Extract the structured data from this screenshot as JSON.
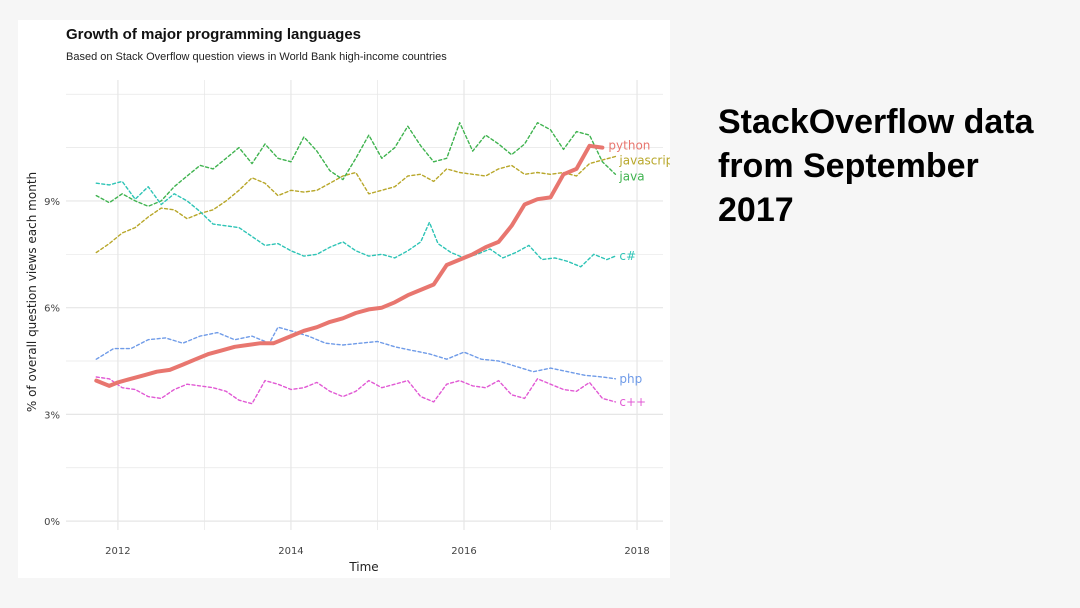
{
  "side_caption": "StackOverflow data from September 2017",
  "colors": {
    "python": "#e8766f",
    "javascript": "#b8a72a",
    "java": "#3fb34f",
    "csharp": "#2ec4b6",
    "php": "#6f9be8",
    "cpp": "#e159d4",
    "grid": "#e6e6e6"
  },
  "chart_data": {
    "type": "line",
    "title": "Growth of major programming languages",
    "subtitle": "Based on Stack Overflow question views in World Bank high-income countries",
    "xlabel": "Time",
    "ylabel": "% of overall question views each month",
    "xlim": [
      2011.4,
      2018.3
    ],
    "ylim": [
      -0.25,
      12.4
    ],
    "x_ticks": [
      2012,
      2014,
      2016,
      2018
    ],
    "x_tick_labels": [
      "2012",
      "2014",
      "2016",
      "2018"
    ],
    "y_ticks": [
      0,
      3,
      6,
      9
    ],
    "y_tick_labels": [
      "0%",
      "3%",
      "6%",
      "9%"
    ],
    "grid": true,
    "series": [
      {
        "name": "python",
        "label": "python",
        "color": "#e8766f",
        "style": "solid",
        "x": [
          2011.75,
          2011.9,
          2012.0,
          2012.15,
          2012.3,
          2012.45,
          2012.6,
          2012.75,
          2012.9,
          2013.05,
          2013.2,
          2013.35,
          2013.5,
          2013.65,
          2013.8,
          2014.0,
          2014.15,
          2014.3,
          2014.45,
          2014.6,
          2014.75,
          2014.9,
          2015.05,
          2015.2,
          2015.35,
          2015.5,
          2015.65,
          2015.8,
          2015.95,
          2016.1,
          2016.25,
          2016.4,
          2016.55,
          2016.7,
          2016.85,
          2017.0,
          2017.15,
          2017.3,
          2017.45,
          2017.6
        ],
        "values": [
          3.95,
          3.8,
          3.9,
          4.0,
          4.1,
          4.2,
          4.25,
          4.4,
          4.55,
          4.7,
          4.8,
          4.9,
          4.95,
          5.0,
          5.0,
          5.2,
          5.35,
          5.45,
          5.6,
          5.7,
          5.85,
          5.95,
          6.0,
          6.15,
          6.35,
          6.5,
          6.65,
          7.2,
          7.35,
          7.5,
          7.7,
          7.85,
          8.3,
          8.9,
          9.05,
          9.1,
          9.75,
          9.9,
          10.55,
          10.5
        ]
      },
      {
        "name": "javascript",
        "label": "javascript",
        "color": "#b8a72a",
        "style": "dashed",
        "x": [
          2011.75,
          2011.9,
          2012.05,
          2012.2,
          2012.35,
          2012.5,
          2012.65,
          2012.8,
          2012.95,
          2013.1,
          2013.25,
          2013.4,
          2013.55,
          2013.7,
          2013.85,
          2014.0,
          2014.15,
          2014.3,
          2014.45,
          2014.6,
          2014.75,
          2014.9,
          2015.05,
          2015.2,
          2015.35,
          2015.5,
          2015.65,
          2015.8,
          2015.95,
          2016.1,
          2016.25,
          2016.4,
          2016.55,
          2016.7,
          2016.85,
          2017.0,
          2017.15,
          2017.3,
          2017.45,
          2017.6,
          2017.75
        ],
        "values": [
          7.55,
          7.8,
          8.1,
          8.25,
          8.55,
          8.8,
          8.75,
          8.5,
          8.65,
          8.75,
          9.0,
          9.3,
          9.65,
          9.5,
          9.15,
          9.3,
          9.25,
          9.3,
          9.5,
          9.7,
          9.8,
          9.2,
          9.3,
          9.4,
          9.7,
          9.75,
          9.55,
          9.9,
          9.8,
          9.75,
          9.7,
          9.9,
          10.0,
          9.75,
          9.8,
          9.75,
          9.8,
          9.7,
          10.05,
          10.15,
          10.25
        ]
      },
      {
        "name": "java",
        "label": "java",
        "color": "#3fb34f",
        "style": "dashed",
        "x": [
          2011.75,
          2011.9,
          2012.05,
          2012.2,
          2012.35,
          2012.5,
          2012.65,
          2012.8,
          2012.95,
          2013.1,
          2013.25,
          2013.4,
          2013.55,
          2013.7,
          2013.85,
          2014.0,
          2014.15,
          2014.3,
          2014.45,
          2014.6,
          2014.75,
          2014.9,
          2015.05,
          2015.2,
          2015.35,
          2015.5,
          2015.65,
          2015.8,
          2015.95,
          2016.1,
          2016.25,
          2016.4,
          2016.55,
          2016.7,
          2016.85,
          2017.0,
          2017.15,
          2017.3,
          2017.45,
          2017.6,
          2017.75
        ],
        "values": [
          9.15,
          8.95,
          9.2,
          9.0,
          8.85,
          9.0,
          9.4,
          9.7,
          10.0,
          9.9,
          10.2,
          10.5,
          10.05,
          10.6,
          10.2,
          10.1,
          10.8,
          10.4,
          9.85,
          9.6,
          10.2,
          10.85,
          10.2,
          10.5,
          11.1,
          10.55,
          10.1,
          10.2,
          11.2,
          10.4,
          10.85,
          10.6,
          10.3,
          10.6,
          11.2,
          11.0,
          10.45,
          10.95,
          10.85,
          10.1,
          9.75
        ]
      },
      {
        "name": "csharp",
        "label": "c#",
        "color": "#2ec4b6",
        "style": "dashed",
        "x": [
          2011.75,
          2011.9,
          2012.05,
          2012.2,
          2012.35,
          2012.5,
          2012.65,
          2012.8,
          2012.95,
          2013.1,
          2013.25,
          2013.4,
          2013.55,
          2013.7,
          2013.85,
          2014.0,
          2014.15,
          2014.3,
          2014.45,
          2014.6,
          2014.75,
          2014.9,
          2015.05,
          2015.2,
          2015.35,
          2015.5,
          2015.6,
          2015.7,
          2015.85,
          2016.0,
          2016.15,
          2016.3,
          2016.45,
          2016.6,
          2016.75,
          2016.9,
          2017.05,
          2017.2,
          2017.35,
          2017.5,
          2017.65,
          2017.75
        ],
        "values": [
          9.5,
          9.45,
          9.55,
          9.05,
          9.4,
          8.9,
          9.2,
          9.0,
          8.7,
          8.35,
          8.3,
          8.25,
          8.0,
          7.75,
          7.8,
          7.6,
          7.45,
          7.5,
          7.7,
          7.85,
          7.6,
          7.45,
          7.5,
          7.4,
          7.6,
          7.85,
          8.4,
          7.8,
          7.55,
          7.4,
          7.5,
          7.65,
          7.4,
          7.55,
          7.75,
          7.35,
          7.4,
          7.3,
          7.15,
          7.5,
          7.35,
          7.45
        ]
      },
      {
        "name": "php",
        "label": "php",
        "color": "#6f9be8",
        "style": "dashed",
        "x": [
          2011.75,
          2011.95,
          2012.15,
          2012.35,
          2012.55,
          2012.75,
          2012.95,
          2013.15,
          2013.35,
          2013.55,
          2013.75,
          2013.85,
          2014.0,
          2014.2,
          2014.4,
          2014.6,
          2014.8,
          2015.0,
          2015.2,
          2015.4,
          2015.6,
          2015.8,
          2016.0,
          2016.2,
          2016.4,
          2016.6,
          2016.8,
          2017.0,
          2017.2,
          2017.4,
          2017.6,
          2017.75
        ],
        "values": [
          4.55,
          4.85,
          4.85,
          5.1,
          5.15,
          5.0,
          5.2,
          5.3,
          5.1,
          5.2,
          5.0,
          5.45,
          5.35,
          5.2,
          5.0,
          4.95,
          5.0,
          5.05,
          4.9,
          4.8,
          4.7,
          4.55,
          4.75,
          4.55,
          4.5,
          4.35,
          4.2,
          4.3,
          4.2,
          4.1,
          4.05,
          4.0
        ]
      },
      {
        "name": "cpp",
        "label": "c++",
        "color": "#e159d4",
        "style": "dashed",
        "x": [
          2011.75,
          2011.9,
          2012.05,
          2012.2,
          2012.35,
          2012.5,
          2012.65,
          2012.8,
          2012.95,
          2013.1,
          2013.25,
          2013.4,
          2013.55,
          2013.7,
          2013.85,
          2014.0,
          2014.15,
          2014.3,
          2014.45,
          2014.6,
          2014.75,
          2014.9,
          2015.05,
          2015.2,
          2015.35,
          2015.5,
          2015.65,
          2015.8,
          2015.95,
          2016.1,
          2016.25,
          2016.4,
          2016.55,
          2016.7,
          2016.85,
          2017.0,
          2017.15,
          2017.3,
          2017.45,
          2017.6,
          2017.75
        ],
        "values": [
          4.05,
          4.0,
          3.75,
          3.7,
          3.5,
          3.45,
          3.7,
          3.85,
          3.8,
          3.75,
          3.65,
          3.4,
          3.3,
          3.95,
          3.85,
          3.7,
          3.75,
          3.9,
          3.65,
          3.5,
          3.65,
          3.95,
          3.75,
          3.85,
          3.95,
          3.5,
          3.35,
          3.85,
          3.95,
          3.8,
          3.75,
          3.95,
          3.55,
          3.45,
          4.0,
          3.85,
          3.7,
          3.65,
          3.9,
          3.45,
          3.35
        ]
      }
    ]
  }
}
